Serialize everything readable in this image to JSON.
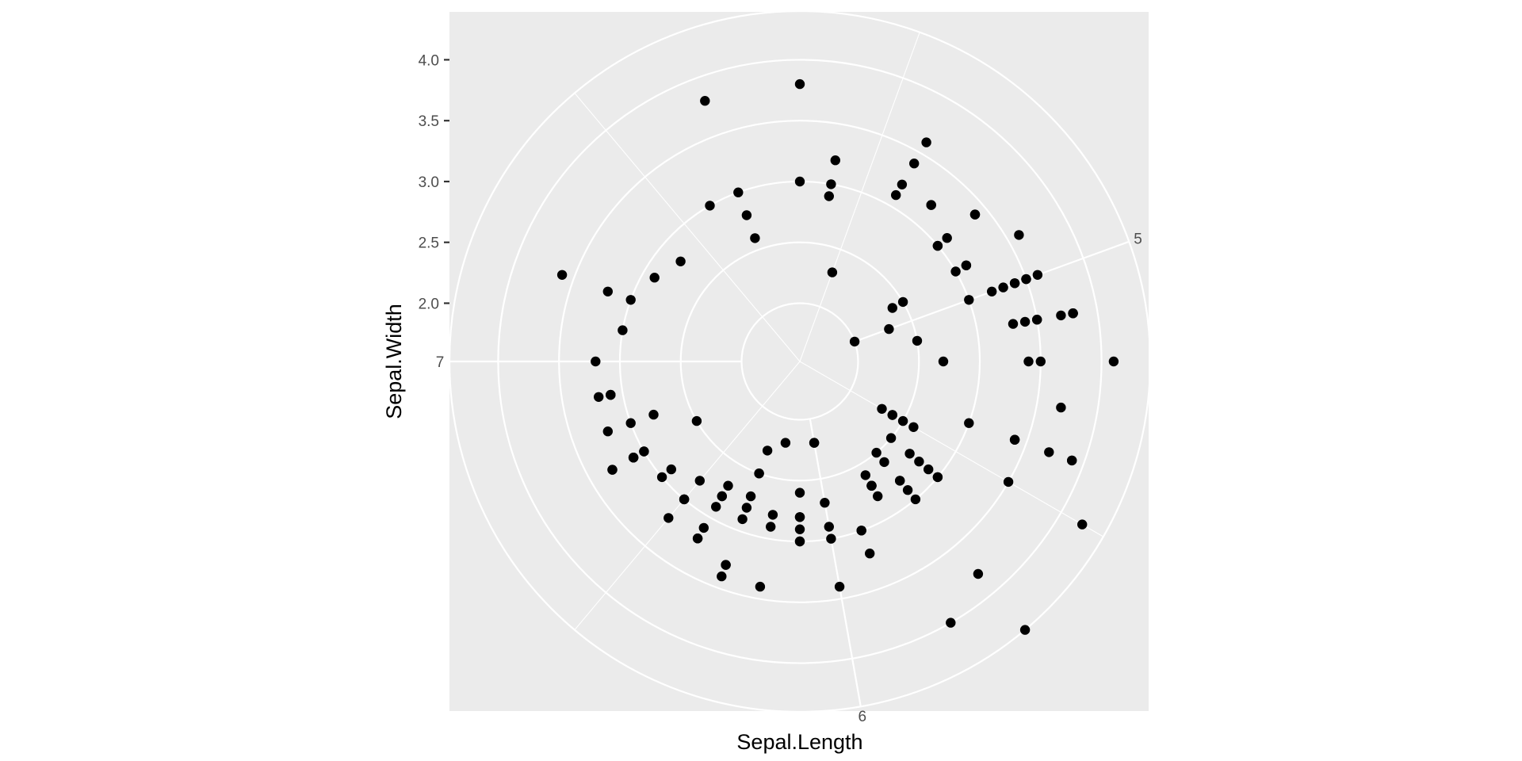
{
  "chart_data": {
    "type": "scatter",
    "coord": "polar",
    "theta_variable": "Sepal.Length",
    "r_variable": "Sepal.Width",
    "xlabel": "Sepal.Length",
    "ylabel": "Sepal.Width",
    "theta_range": [
      4.3,
      7.9
    ],
    "r_range": [
      2.0,
      4.4
    ],
    "theta_ticks": [
      5,
      6,
      7
    ],
    "theta_tick_labels": [
      "5",
      "6",
      "7"
    ],
    "r_ticks": [
      2.0,
      2.5,
      3.0,
      3.5,
      4.0
    ],
    "r_tick_labels": [
      "2.0",
      "2.5",
      "3.0",
      "3.5",
      "4.0"
    ],
    "grid": true,
    "colors": {
      "panel": "#EBEBEB",
      "grid": "#FFFFFF",
      "point": "#000000",
      "tick_text": "#4D4D4D"
    },
    "points": [
      {
        "x": 5.1,
        "y": 3.5
      },
      {
        "x": 4.9,
        "y": 3.0
      },
      {
        "x": 4.7,
        "y": 3.2
      },
      {
        "x": 4.6,
        "y": 3.1
      },
      {
        "x": 5.0,
        "y": 3.6
      },
      {
        "x": 5.4,
        "y": 3.9
      },
      {
        "x": 4.6,
        "y": 3.4
      },
      {
        "x": 5.0,
        "y": 3.4
      },
      {
        "x": 4.4,
        "y": 2.9
      },
      {
        "x": 4.9,
        "y": 3.1
      },
      {
        "x": 5.4,
        "y": 3.7
      },
      {
        "x": 4.8,
        "y": 3.4
      },
      {
        "x": 4.8,
        "y": 3.0
      },
      {
        "x": 4.3,
        "y": 3.0
      },
      {
        "x": 5.8,
        "y": 4.0
      },
      {
        "x": 5.7,
        "y": 4.4
      },
      {
        "x": 5.4,
        "y": 3.9
      },
      {
        "x": 5.1,
        "y": 3.5
      },
      {
        "x": 5.7,
        "y": 3.8
      },
      {
        "x": 5.1,
        "y": 3.8
      },
      {
        "x": 5.4,
        "y": 3.4
      },
      {
        "x": 5.1,
        "y": 3.7
      },
      {
        "x": 4.6,
        "y": 3.6
      },
      {
        "x": 5.1,
        "y": 3.3
      },
      {
        "x": 4.8,
        "y": 3.4
      },
      {
        "x": 5.0,
        "y": 3.0
      },
      {
        "x": 5.0,
        "y": 3.4
      },
      {
        "x": 5.2,
        "y": 3.5
      },
      {
        "x": 5.2,
        "y": 3.4
      },
      {
        "x": 4.7,
        "y": 3.2
      },
      {
        "x": 4.8,
        "y": 3.1
      },
      {
        "x": 5.4,
        "y": 3.4
      },
      {
        "x": 5.2,
        "y": 4.1
      },
      {
        "x": 5.5,
        "y": 4.2
      },
      {
        "x": 4.9,
        "y": 3.1
      },
      {
        "x": 5.0,
        "y": 3.2
      },
      {
        "x": 5.5,
        "y": 3.5
      },
      {
        "x": 4.9,
        "y": 3.6
      },
      {
        "x": 4.4,
        "y": 3.0
      },
      {
        "x": 5.1,
        "y": 3.4
      },
      {
        "x": 5.0,
        "y": 3.5
      },
      {
        "x": 4.5,
        "y": 2.3
      },
      {
        "x": 4.4,
        "y": 3.2
      },
      {
        "x": 5.0,
        "y": 3.5
      },
      {
        "x": 5.1,
        "y": 3.8
      },
      {
        "x": 4.8,
        "y": 3.0
      },
      {
        "x": 5.1,
        "y": 3.8
      },
      {
        "x": 4.6,
        "y": 3.2
      },
      {
        "x": 5.3,
        "y": 3.7
      },
      {
        "x": 5.0,
        "y": 3.3
      },
      {
        "x": 7.0,
        "y": 3.2
      },
      {
        "x": 6.4,
        "y": 3.2
      },
      {
        "x": 6.9,
        "y": 3.1
      },
      {
        "x": 5.5,
        "y": 2.3
      },
      {
        "x": 6.5,
        "y": 2.8
      },
      {
        "x": 5.7,
        "y": 2.8
      },
      {
        "x": 6.3,
        "y": 3.3
      },
      {
        "x": 4.9,
        "y": 2.4
      },
      {
        "x": 6.6,
        "y": 2.9
      },
      {
        "x": 5.2,
        "y": 2.7
      },
      {
        "x": 5.0,
        "y": 2.0
      },
      {
        "x": 5.9,
        "y": 3.0
      },
      {
        "x": 6.0,
        "y": 2.2
      },
      {
        "x": 6.1,
        "y": 2.9
      },
      {
        "x": 5.6,
        "y": 2.9
      },
      {
        "x": 6.7,
        "y": 3.1
      },
      {
        "x": 5.6,
        "y": 3.0
      },
      {
        "x": 5.8,
        "y": 2.7
      },
      {
        "x": 6.2,
        "y": 2.2
      },
      {
        "x": 5.6,
        "y": 2.5
      },
      {
        "x": 5.9,
        "y": 3.2
      },
      {
        "x": 6.1,
        "y": 2.8
      },
      {
        "x": 6.3,
        "y": 2.5
      },
      {
        "x": 6.1,
        "y": 2.8
      },
      {
        "x": 6.4,
        "y": 2.9
      },
      {
        "x": 6.6,
        "y": 3.0
      },
      {
        "x": 6.8,
        "y": 2.8
      },
      {
        "x": 6.7,
        "y": 3.0
      },
      {
        "x": 6.0,
        "y": 2.9
      },
      {
        "x": 5.7,
        "y": 2.6
      },
      {
        "x": 5.5,
        "y": 2.4
      },
      {
        "x": 5.5,
        "y": 2.4
      },
      {
        "x": 5.8,
        "y": 2.7
      },
      {
        "x": 6.0,
        "y": 2.7
      },
      {
        "x": 5.4,
        "y": 3.0
      },
      {
        "x": 6.0,
        "y": 3.4
      },
      {
        "x": 6.7,
        "y": 3.1
      },
      {
        "x": 6.3,
        "y": 2.3
      },
      {
        "x": 5.6,
        "y": 3.0
      },
      {
        "x": 5.5,
        "y": 2.5
      },
      {
        "x": 5.5,
        "y": 2.6
      },
      {
        "x": 6.1,
        "y": 3.0
      },
      {
        "x": 5.8,
        "y": 2.6
      },
      {
        "x": 5.0,
        "y": 2.3
      },
      {
        "x": 5.6,
        "y": 2.7
      },
      {
        "x": 5.7,
        "y": 3.0
      },
      {
        "x": 5.7,
        "y": 2.9
      },
      {
        "x": 6.2,
        "y": 2.9
      },
      {
        "x": 5.1,
        "y": 2.5
      },
      {
        "x": 5.7,
        "y": 2.8
      },
      {
        "x": 6.3,
        "y": 3.3
      },
      {
        "x": 5.8,
        "y": 2.7
      },
      {
        "x": 7.1,
        "y": 3.0
      },
      {
        "x": 6.3,
        "y": 2.9
      },
      {
        "x": 6.5,
        "y": 3.0
      },
      {
        "x": 7.6,
        "y": 3.0
      },
      {
        "x": 4.9,
        "y": 2.5
      },
      {
        "x": 7.3,
        "y": 2.9
      },
      {
        "x": 6.7,
        "y": 2.5
      },
      {
        "x": 7.2,
        "y": 3.6
      },
      {
        "x": 6.5,
        "y": 3.2
      },
      {
        "x": 6.4,
        "y": 2.7
      },
      {
        "x": 6.8,
        "y": 3.0
      },
      {
        "x": 5.7,
        "y": 2.5
      },
      {
        "x": 5.8,
        "y": 2.8
      },
      {
        "x": 6.4,
        "y": 3.2
      },
      {
        "x": 6.5,
        "y": 3.0
      },
      {
        "x": 7.7,
        "y": 3.8
      },
      {
        "x": 7.7,
        "y": 2.6
      },
      {
        "x": 6.0,
        "y": 2.2
      },
      {
        "x": 6.9,
        "y": 3.2
      },
      {
        "x": 5.6,
        "y": 2.8
      },
      {
        "x": 7.7,
        "y": 2.8
      },
      {
        "x": 6.3,
        "y": 2.7
      },
      {
        "x": 6.7,
        "y": 3.3
      },
      {
        "x": 7.2,
        "y": 3.2
      },
      {
        "x": 6.2,
        "y": 2.8
      },
      {
        "x": 6.1,
        "y": 3.0
      },
      {
        "x": 6.4,
        "y": 2.8
      },
      {
        "x": 7.2,
        "y": 3.0
      },
      {
        "x": 7.4,
        "y": 2.8
      },
      {
        "x": 7.9,
        "y": 3.8
      },
      {
        "x": 6.4,
        "y": 2.8
      },
      {
        "x": 6.3,
        "y": 2.8
      },
      {
        "x": 6.1,
        "y": 2.6
      },
      {
        "x": 7.7,
        "y": 3.0
      },
      {
        "x": 6.3,
        "y": 3.4
      },
      {
        "x": 6.4,
        "y": 3.1
      },
      {
        "x": 6.0,
        "y": 3.0
      },
      {
        "x": 6.9,
        "y": 3.1
      },
      {
        "x": 6.7,
        "y": 3.1
      },
      {
        "x": 6.9,
        "y": 3.1
      },
      {
        "x": 5.8,
        "y": 2.7
      },
      {
        "x": 6.8,
        "y": 3.2
      },
      {
        "x": 6.7,
        "y": 3.3
      },
      {
        "x": 6.7,
        "y": 3.0
      },
      {
        "x": 6.3,
        "y": 2.5
      },
      {
        "x": 6.5,
        "y": 3.0
      },
      {
        "x": 6.2,
        "y": 3.4
      },
      {
        "x": 5.9,
        "y": 3.0
      }
    ]
  }
}
